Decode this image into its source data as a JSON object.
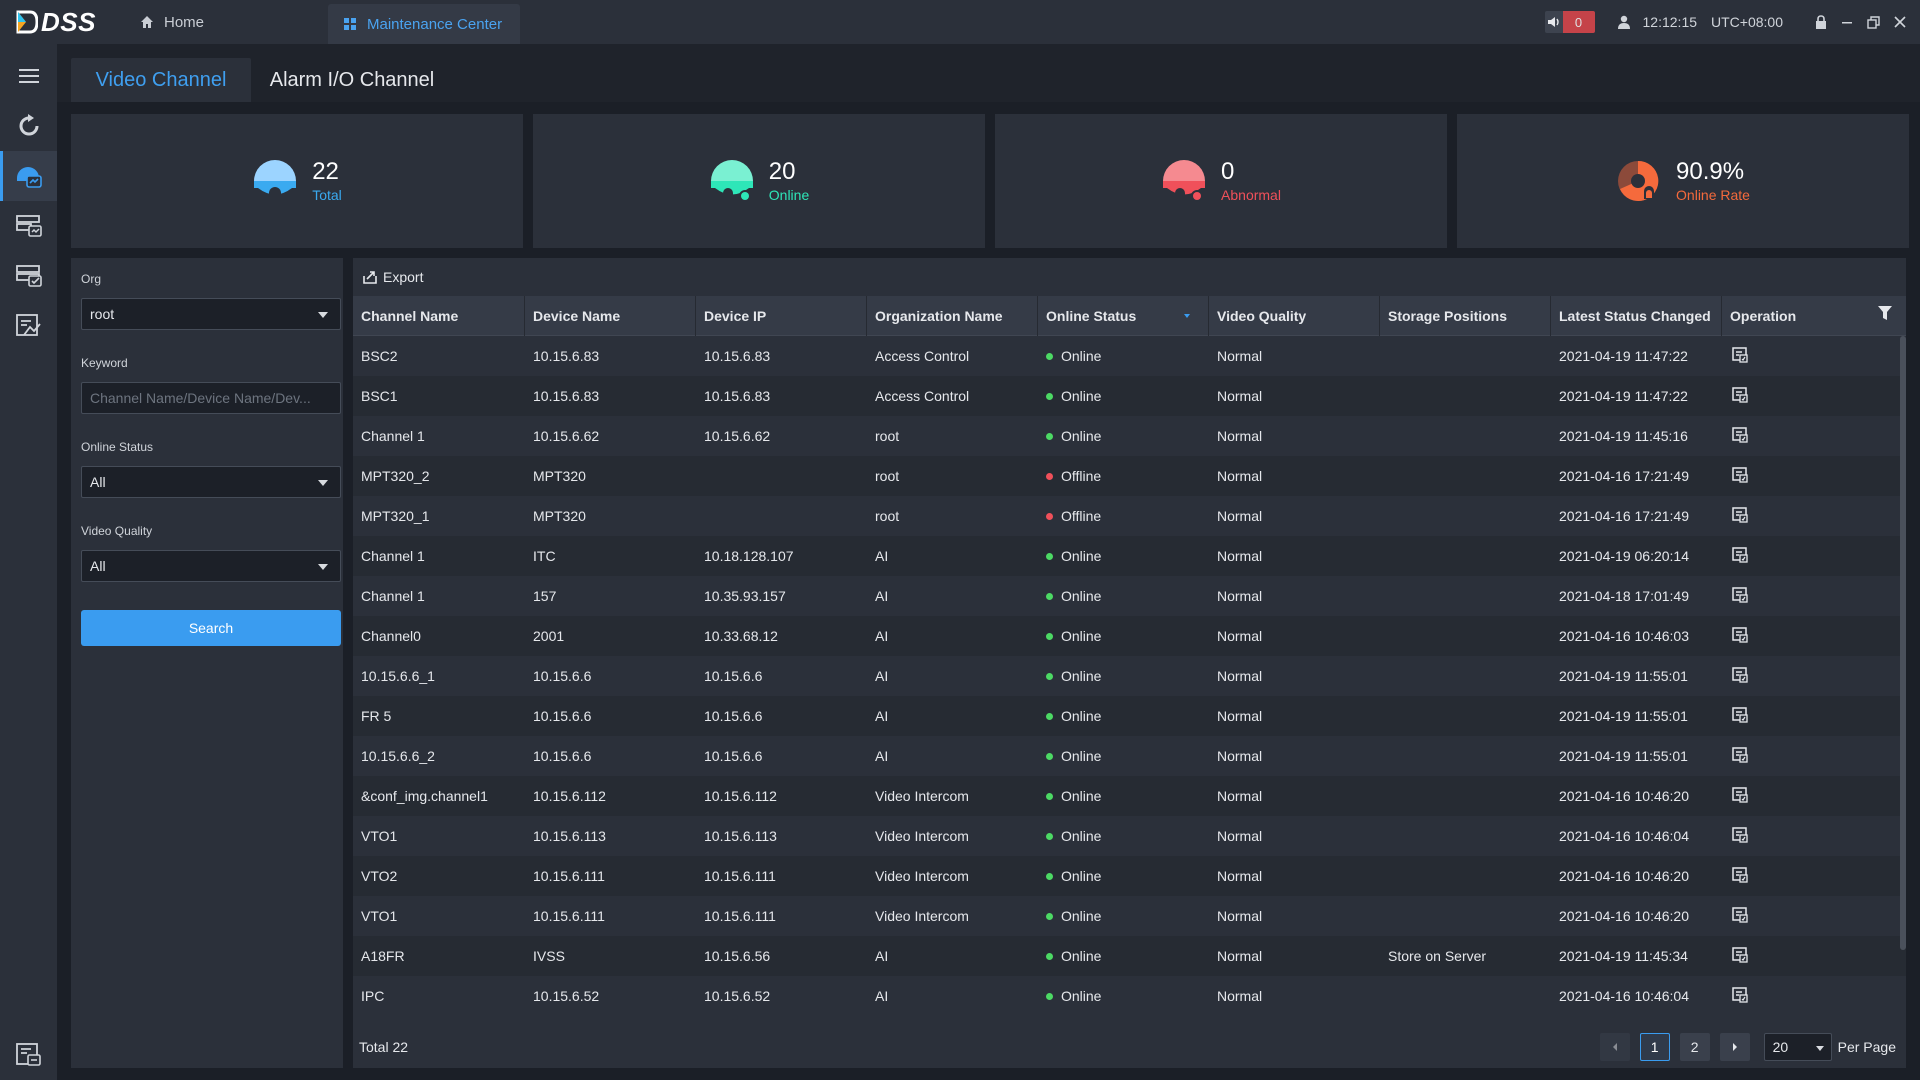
{
  "app": {
    "logo_text": "DSS",
    "tabs": [
      {
        "label": "Home",
        "icon": "home-icon"
      },
      {
        "label": "Maintenance Center",
        "icon": "grid-icon"
      }
    ]
  },
  "topbar": {
    "alarm_count": "0",
    "time": "12:12:15",
    "timezone": "UTC+08:00"
  },
  "leftnav": {
    "items": [
      "menu-icon",
      "refresh-icon",
      "channel-status-icon",
      "storage-icon",
      "server-status-icon",
      "report-icon",
      "log-icon"
    ]
  },
  "content_tabs": [
    {
      "label": "Video Channel"
    },
    {
      "label": "Alarm I/O Channel"
    }
  ],
  "stats": {
    "total": {
      "value": "22",
      "label": "Total",
      "color": "#3aaaf0"
    },
    "online": {
      "value": "20",
      "label": "Online",
      "color": "#2ee6b8"
    },
    "abnormal": {
      "value": "0",
      "label": "Abnormal",
      "color": "#f0505a"
    },
    "rate": {
      "value": "90.9%",
      "label": "Online Rate",
      "color": "#f56a3c"
    }
  },
  "filter": {
    "org_label": "Org",
    "org_value": "root",
    "keyword_label": "Keyword",
    "keyword_placeholder": "Channel Name/Device Name/Dev...",
    "status_label": "Online Status",
    "status_value": "All",
    "quality_label": "Video Quality",
    "quality_value": "All",
    "search_label": "Search"
  },
  "table": {
    "export_label": "Export",
    "columns": [
      "Channel Name",
      "Device Name",
      "Device IP",
      "Organization Name",
      "Online Status",
      "Video Quality",
      "Storage Positions",
      "Latest Status Changed",
      "Operation"
    ],
    "rows": [
      [
        "BSC2",
        "10.15.6.83",
        "10.15.6.83",
        "Access Control",
        "Online",
        "Normal",
        "",
        "2021-04-19 11:47:22"
      ],
      [
        "BSC1",
        "10.15.6.83",
        "10.15.6.83",
        "Access Control",
        "Online",
        "Normal",
        "",
        "2021-04-19 11:47:22"
      ],
      [
        "Channel 1",
        "10.15.6.62",
        "10.15.6.62",
        "root",
        "Online",
        "Normal",
        "",
        "2021-04-19 11:45:16"
      ],
      [
        "MPT320_2",
        "MPT320",
        "",
        "root",
        "Offline",
        "Normal",
        "",
        "2021-04-16 17:21:49"
      ],
      [
        "MPT320_1",
        "MPT320",
        "",
        "root",
        "Offline",
        "Normal",
        "",
        "2021-04-16 17:21:49"
      ],
      [
        "Channel 1",
        "ITC",
        "10.18.128.107",
        "AI",
        "Online",
        "Normal",
        "",
        "2021-04-19 06:20:14"
      ],
      [
        "Channel 1",
        "157",
        "10.35.93.157",
        "AI",
        "Online",
        "Normal",
        "",
        "2021-04-18 17:01:49"
      ],
      [
        "Channel0",
        "2001",
        "10.33.68.12",
        "AI",
        "Online",
        "Normal",
        "",
        "2021-04-16 10:46:03"
      ],
      [
        "10.15.6.6_1",
        "10.15.6.6",
        "10.15.6.6",
        "AI",
        "Online",
        "Normal",
        "",
        "2021-04-19 11:55:01"
      ],
      [
        "FR 5",
        "10.15.6.6",
        "10.15.6.6",
        "AI",
        "Online",
        "Normal",
        "",
        "2021-04-19 11:55:01"
      ],
      [
        "10.15.6.6_2",
        "10.15.6.6",
        "10.15.6.6",
        "AI",
        "Online",
        "Normal",
        "",
        "2021-04-19 11:55:01"
      ],
      [
        "&conf_img.channel1",
        "10.15.6.112",
        "10.15.6.112",
        "Video Intercom",
        "Online",
        "Normal",
        "",
        "2021-04-16 10:46:20"
      ],
      [
        "VTO1",
        "10.15.6.113",
        "10.15.6.113",
        "Video Intercom",
        "Online",
        "Normal",
        "",
        "2021-04-16 10:46:04"
      ],
      [
        "VTO2",
        "10.15.6.111",
        "10.15.6.111",
        "Video Intercom",
        "Online",
        "Normal",
        "",
        "2021-04-16 10:46:20"
      ],
      [
        "VTO1",
        "10.15.6.111",
        "10.15.6.111",
        "Video Intercom",
        "Online",
        "Normal",
        "",
        "2021-04-16 10:46:20"
      ],
      [
        "A18FR",
        "IVSS",
        "10.15.6.56",
        "AI",
        "Online",
        "Normal",
        "Store on Server",
        "2021-04-19 11:45:34"
      ],
      [
        "IPC",
        "10.15.6.52",
        "10.15.6.52",
        "AI",
        "Online",
        "Normal",
        "",
        "2021-04-16 10:46:04"
      ]
    ],
    "status_colors": {
      "Online": "#4cd964",
      "Offline": "#f0505a"
    }
  },
  "footer": {
    "total_text": "Total 22",
    "pages": [
      "1",
      "2"
    ],
    "per_page_value": "20",
    "per_page_label": "Per Page"
  }
}
